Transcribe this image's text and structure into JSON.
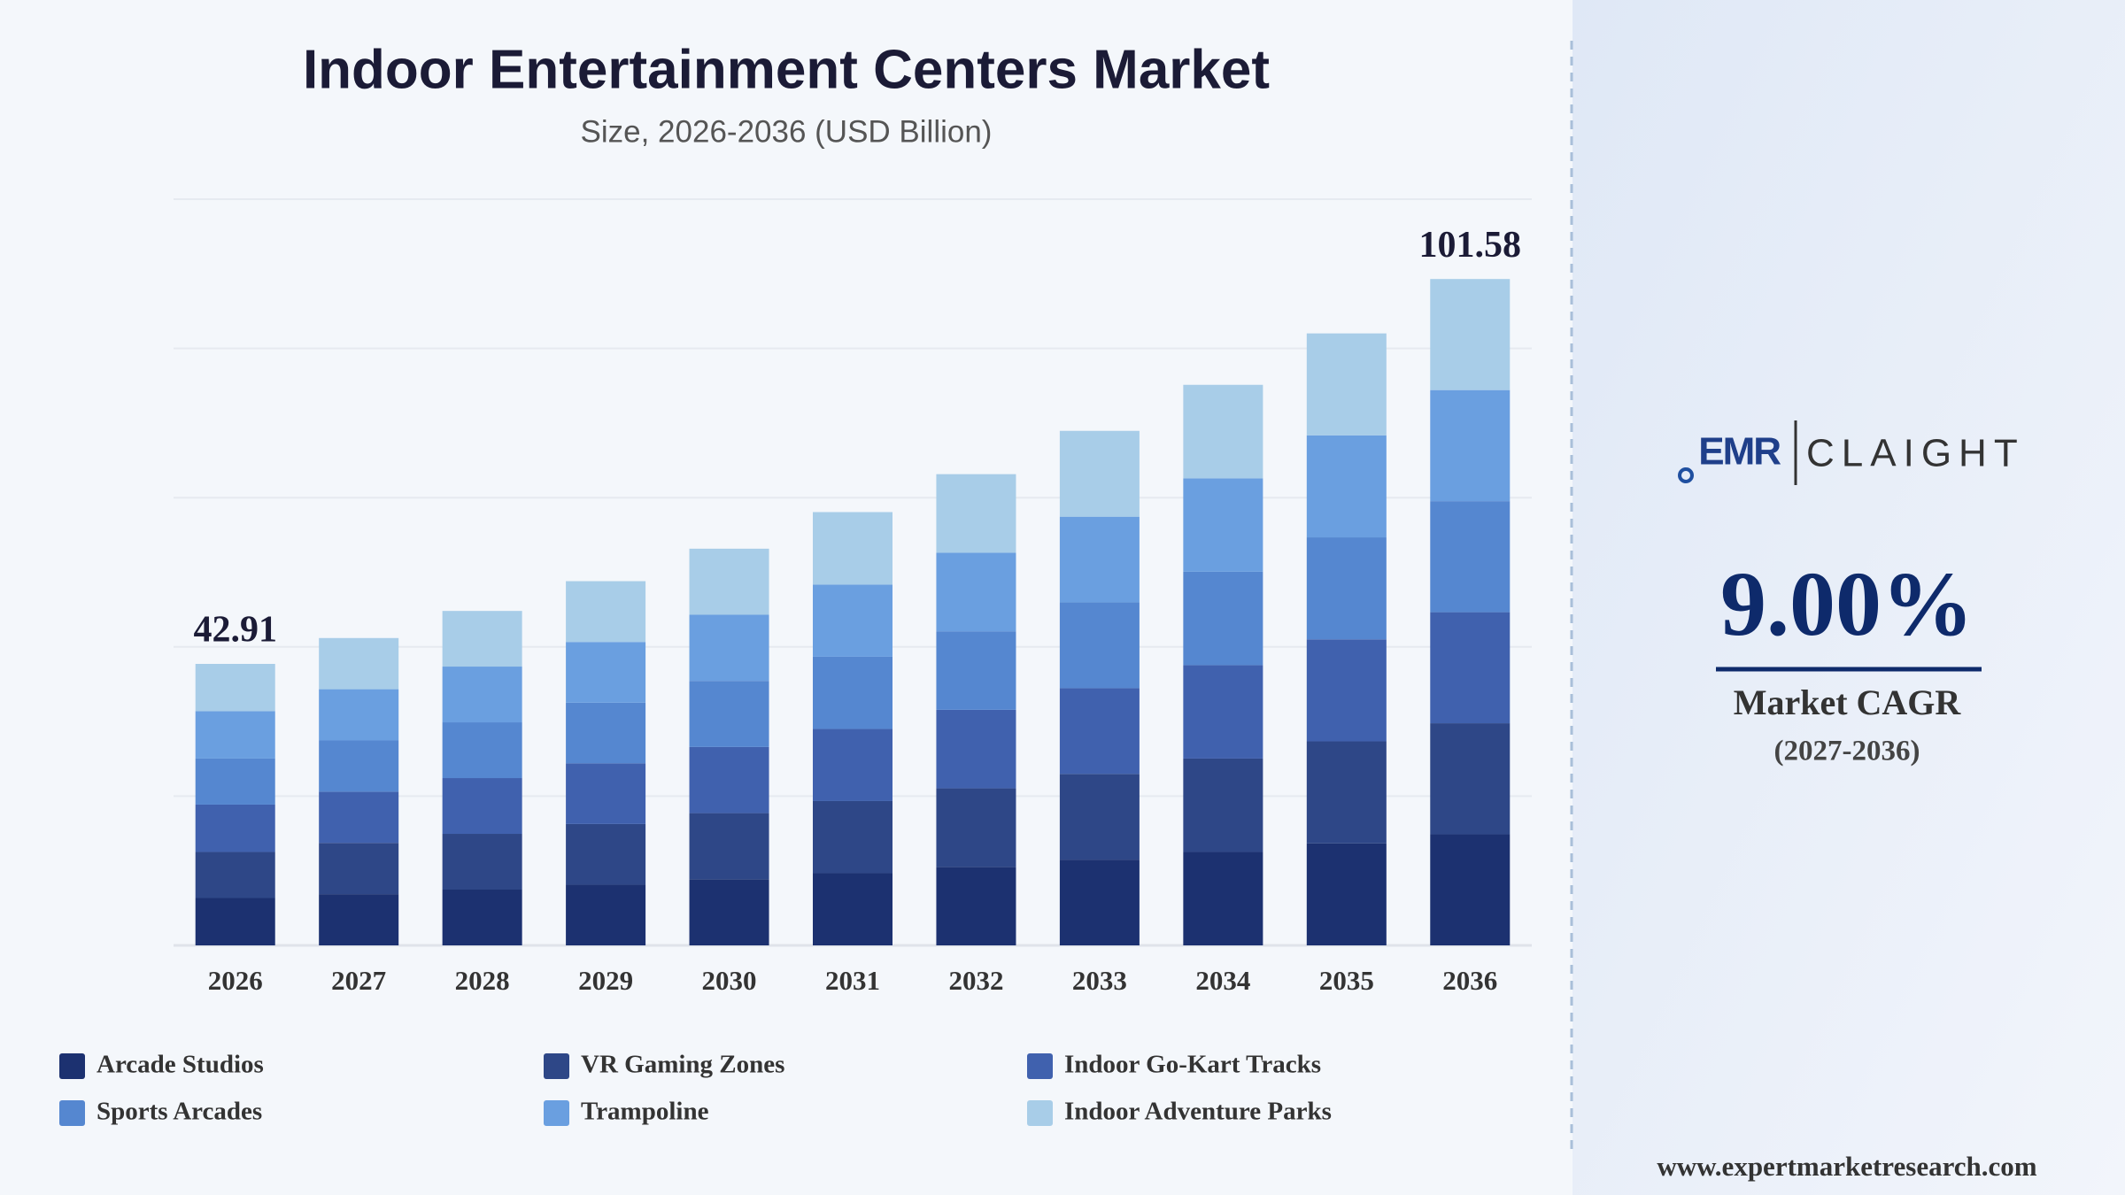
{
  "chart_data": {
    "type": "stacked-bar",
    "title": "Indoor Entertainment Centers Market",
    "subtitle": "Size, 2026-2036 (USD Billion)",
    "categories": [
      "2026",
      "2027",
      "2028",
      "2029",
      "2030",
      "2031",
      "2032",
      "2033",
      "2034",
      "2035",
      "2036"
    ],
    "series": [
      {
        "name": "Arcade Studios",
        "color": "#1c3170",
        "values": [
          7.22,
          7.81,
          8.5,
          9.25,
          10.08,
          11.0,
          11.97,
          13.07,
          14.24,
          15.55,
          16.93
        ]
      },
      {
        "name": "VR Gaming Zones",
        "color": "#2e4787",
        "values": [
          7.02,
          7.81,
          8.5,
          9.25,
          10.08,
          11.0,
          11.97,
          13.07,
          14.24,
          15.55,
          16.93
        ]
      },
      {
        "name": "Indoor Go-Kart Tracks",
        "color": "#4061ae",
        "values": [
          7.22,
          7.81,
          8.5,
          9.25,
          10.08,
          11.0,
          11.97,
          13.07,
          14.24,
          15.55,
          16.93
        ]
      },
      {
        "name": "Sports Arcades",
        "color": "#5587d0",
        "values": [
          7.02,
          7.81,
          8.5,
          9.25,
          10.08,
          11.0,
          11.97,
          13.07,
          14.24,
          15.55,
          16.93
        ]
      },
      {
        "name": "Trampoline",
        "color": "#6a9fe0",
        "values": [
          7.22,
          7.81,
          8.5,
          9.25,
          10.08,
          11.0,
          11.97,
          13.07,
          14.24,
          15.55,
          16.93
        ]
      },
      {
        "name": "Indoor Adventure Parks",
        "color": "#a8cde8",
        "values": [
          7.21,
          7.8,
          8.48,
          9.27,
          10.07,
          11.05,
          11.98,
          13.08,
          14.25,
          15.54,
          16.93
        ]
      }
    ],
    "total_labels": [
      42.91,
      null,
      null,
      null,
      null,
      null,
      null,
      null,
      null,
      null,
      101.58
    ],
    "ylim": [
      0,
      113.75
    ],
    "grid": true
  },
  "sidebar": {
    "logo_left": "EMR",
    "logo_right": "CLAIGHT",
    "cagr_value": "9.00%",
    "cagr_label": "Market CAGR",
    "cagr_period": "(2027-2036)",
    "website": "www.expertmarketresearch.com"
  }
}
